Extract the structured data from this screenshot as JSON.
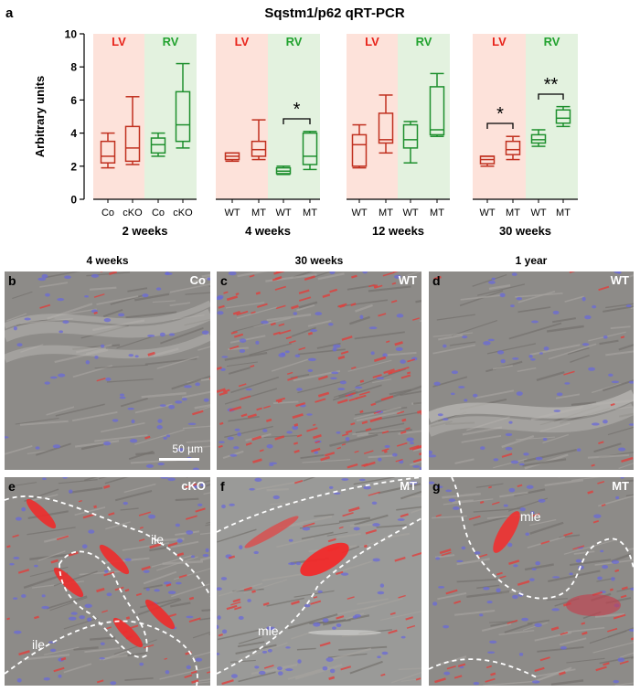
{
  "panel_a": {
    "letter": "a",
    "title": "Sqstm1/p62 qRT-PCR",
    "colors": {
      "lv": "#c0301f",
      "rv": "#1e8f2e",
      "lv_band": "#fde2da",
      "rv_band": "#e3f2df",
      "lv_text": "#e8231a",
      "rv_text": "#22a22f"
    },
    "chart_data": {
      "type": "box",
      "title": "Sqstm1/p62 qRT-PCR",
      "ylabel": "Arbitrary units",
      "ylim": [
        0,
        10
      ],
      "yticks": [
        0,
        2,
        4,
        6,
        8,
        10
      ],
      "groups": [
        {
          "name": "2 weeks",
          "lv_label": "LV",
          "rv_label": "RV",
          "boxes": [
            {
              "chamber": "LV",
              "label": "Co",
              "min": 1.9,
              "q1": 2.2,
              "median": 2.6,
              "q3": 3.5,
              "max": 4.0
            },
            {
              "chamber": "LV",
              "label": "cKO",
              "min": 2.1,
              "q1": 2.3,
              "median": 3.1,
              "q3": 4.4,
              "max": 6.2
            },
            {
              "chamber": "RV",
              "label": "Co",
              "min": 2.6,
              "q1": 2.8,
              "median": 3.3,
              "q3": 3.7,
              "max": 4.0
            },
            {
              "chamber": "RV",
              "label": "cKO",
              "min": 3.1,
              "q1": 3.5,
              "median": 4.5,
              "q3": 6.5,
              "max": 8.2
            }
          ]
        },
        {
          "name": "4 weeks",
          "lv_label": "LV",
          "rv_label": "RV",
          "boxes": [
            {
              "chamber": "LV",
              "label": "WT",
              "min": 2.3,
              "q1": 2.4,
              "median": 2.6,
              "q3": 2.8,
              "max": 2.8
            },
            {
              "chamber": "LV",
              "label": "MT",
              "min": 2.4,
              "q1": 2.6,
              "median": 3.0,
              "q3": 3.5,
              "max": 4.8
            },
            {
              "chamber": "RV",
              "label": "WT",
              "min": 1.5,
              "q1": 1.55,
              "median": 1.7,
              "q3": 1.9,
              "max": 2.0
            },
            {
              "chamber": "RV",
              "label": "MT",
              "min": 1.8,
              "q1": 2.1,
              "median": 2.6,
              "q3": 4.0,
              "max": 4.1
            }
          ],
          "significance": {
            "between": [
              "RV WT",
              "RV MT"
            ],
            "mark": "*"
          }
        },
        {
          "name": "12 weeks",
          "lv_label": "LV",
          "rv_label": "RV",
          "boxes": [
            {
              "chamber": "LV",
              "label": "WT",
              "min": 1.9,
              "q1": 2.0,
              "median": 3.3,
              "q3": 3.9,
              "max": 4.5
            },
            {
              "chamber": "LV",
              "label": "MT",
              "min": 2.8,
              "q1": 3.4,
              "median": 3.6,
              "q3": 5.2,
              "max": 6.3
            },
            {
              "chamber": "RV",
              "label": "WT",
              "min": 2.2,
              "q1": 3.1,
              "median": 3.6,
              "q3": 4.5,
              "max": 4.7
            },
            {
              "chamber": "RV",
              "label": "MT",
              "min": 3.8,
              "q1": 3.9,
              "median": 4.2,
              "q3": 6.8,
              "max": 7.6
            }
          ]
        },
        {
          "name": "30 weeks",
          "lv_label": "LV",
          "rv_label": "RV",
          "boxes": [
            {
              "chamber": "LV",
              "label": "WT",
              "min": 2.0,
              "q1": 2.15,
              "median": 2.4,
              "q3": 2.6,
              "max": 2.6
            },
            {
              "chamber": "LV",
              "label": "MT",
              "min": 2.4,
              "q1": 2.7,
              "median": 3.0,
              "q3": 3.5,
              "max": 3.8
            },
            {
              "chamber": "RV",
              "label": "WT",
              "min": 3.2,
              "q1": 3.4,
              "median": 3.6,
              "q3": 3.9,
              "max": 4.2
            },
            {
              "chamber": "RV",
              "label": "MT",
              "min": 4.4,
              "q1": 4.6,
              "median": 4.9,
              "q3": 5.4,
              "max": 5.6
            }
          ],
          "significance": [
            {
              "between": [
                "LV WT",
                "LV MT"
              ],
              "mark": "*"
            },
            {
              "between": [
                "RV WT",
                "RV MT"
              ],
              "mark": "**"
            }
          ]
        }
      ]
    }
  },
  "micrographs": {
    "column_headers": [
      "4 weeks",
      "30 weeks",
      "1 year"
    ],
    "panels": [
      {
        "letter": "b",
        "tag": "Co",
        "style": "sparse"
      },
      {
        "letter": "c",
        "tag": "WT",
        "style": "dense"
      },
      {
        "letter": "d",
        "tag": "WT",
        "style": "sparse"
      },
      {
        "letter": "e",
        "tag": "cKO",
        "style": "cko",
        "region_labels": [
          "ile",
          "ile"
        ]
      },
      {
        "letter": "f",
        "tag": "MT",
        "style": "mt30",
        "region_labels": [
          "mle"
        ]
      },
      {
        "letter": "g",
        "tag": "MT",
        "style": "mt1y",
        "region_labels": [
          "mle"
        ]
      }
    ],
    "scale_bar": "50 µm"
  }
}
